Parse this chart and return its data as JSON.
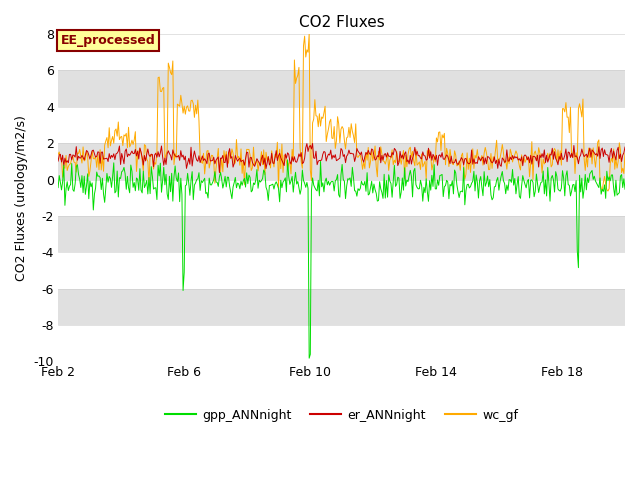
{
  "title": "CO2 Fluxes",
  "ylabel": "CO2 Fluxes (urology/m2/s)",
  "ylim": [
    -10,
    8
  ],
  "yticks": [
    -10,
    -8,
    -6,
    -4,
    -2,
    0,
    2,
    4,
    6,
    8
  ],
  "xlim_days": [
    0,
    18
  ],
  "xtick_days": [
    0,
    4,
    8,
    12,
    16
  ],
  "xtick_labels": [
    "Feb 2",
    "Feb 6",
    "Feb 10",
    "Feb 14",
    "Feb 18"
  ],
  "n_points": 500,
  "gpp_color": "#00dd00",
  "er_color": "#cc0000",
  "wc_color": "#ffaa00",
  "label_gpp": "gpp_ANNnight",
  "label_er": "er_ANNnight",
  "label_wc": "wc_gf",
  "annotation": "EE_processed",
  "annotation_color": "#880000",
  "annotation_bg": "#ffff99",
  "bg_color": "#e8e8e8",
  "white_band_color": "#ffffff",
  "gray_band_color": "#e0e0e0",
  "line_width": 0.7,
  "figsize": [
    6.4,
    4.8
  ],
  "dpi": 100
}
